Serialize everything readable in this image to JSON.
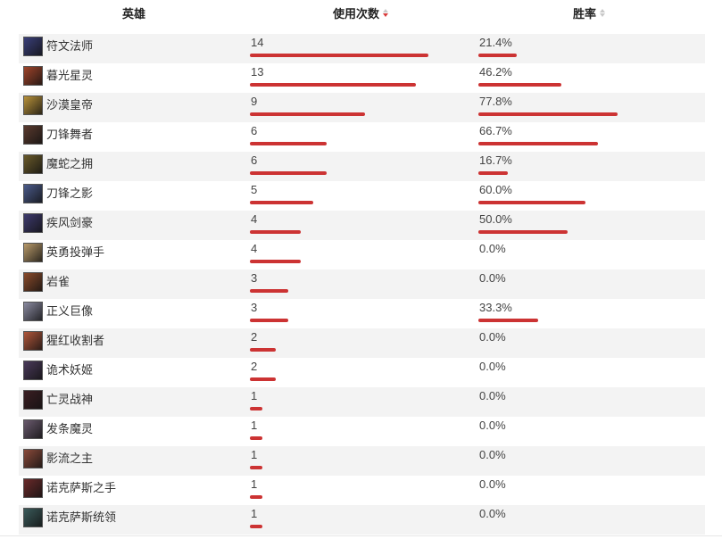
{
  "header": {
    "hero": "英雄",
    "uses": "使用次数",
    "winrate": "胜率"
  },
  "colors": {
    "bar": "#cc3333",
    "sort_active": "#d83a3a"
  },
  "rows": [
    {
      "name": "符文法师",
      "uses": "14",
      "winrate": "21.4%",
      "uses_n": 14,
      "win_n": 21.4,
      "avatar": "#3a3f7a"
    },
    {
      "name": "暮光星灵",
      "uses": "13",
      "winrate": "46.2%",
      "uses_n": 13,
      "win_n": 46.2,
      "avatar": "#a0442a"
    },
    {
      "name": "沙漠皇帝",
      "uses": "9",
      "winrate": "77.8%",
      "uses_n": 9,
      "win_n": 77.8,
      "avatar": "#b8923a"
    },
    {
      "name": "刀锋舞者",
      "uses": "6",
      "winrate": "66.7%",
      "uses_n": 6,
      "win_n": 66.7,
      "avatar": "#5a3a2e"
    },
    {
      "name": "魔蛇之拥",
      "uses": "6",
      "winrate": "16.7%",
      "uses_n": 6,
      "win_n": 16.7,
      "avatar": "#6a5a2a"
    },
    {
      "name": "刀锋之影",
      "uses": "5",
      "winrate": "60.0%",
      "uses_n": 5,
      "win_n": 60.0,
      "avatar": "#4a5a8a"
    },
    {
      "name": "疾风剑豪",
      "uses": "4",
      "winrate": "50.0%",
      "uses_n": 4,
      "win_n": 50.0,
      "avatar": "#3e3a6e"
    },
    {
      "name": "英勇投弹手",
      "uses": "4",
      "winrate": "0.0%",
      "uses_n": 4,
      "win_n": 0,
      "avatar": "#b89a6a"
    },
    {
      "name": "岩雀",
      "uses": "3",
      "winrate": "0.0%",
      "uses_n": 3,
      "win_n": 0,
      "avatar": "#8a4a2a"
    },
    {
      "name": "正义巨像",
      "uses": "3",
      "winrate": "33.3%",
      "uses_n": 3,
      "win_n": 33.3,
      "avatar": "#8a8aa0"
    },
    {
      "name": "猩红收割者",
      "uses": "2",
      "winrate": "0.0%",
      "uses_n": 2,
      "win_n": 0,
      "avatar": "#b0563a"
    },
    {
      "name": "诡术妖姬",
      "uses": "2",
      "winrate": "0.0%",
      "uses_n": 2,
      "win_n": 0,
      "avatar": "#4a3a5a"
    },
    {
      "name": "亡灵战神",
      "uses": "1",
      "winrate": "0.0%",
      "uses_n": 1,
      "win_n": 0,
      "avatar": "#3a1e22"
    },
    {
      "name": "发条魔灵",
      "uses": "1",
      "winrate": "0.0%",
      "uses_n": 1,
      "win_n": 0,
      "avatar": "#6a5a6e"
    },
    {
      "name": "影流之主",
      "uses": "1",
      "winrate": "0.0%",
      "uses_n": 1,
      "win_n": 0,
      "avatar": "#8a4a3a"
    },
    {
      "name": "诺克萨斯之手",
      "uses": "1",
      "winrate": "0.0%",
      "uses_n": 1,
      "win_n": 0,
      "avatar": "#6a2a2a"
    },
    {
      "name": "诺克萨斯统领",
      "uses": "1",
      "winrate": "0.0%",
      "uses_n": 1,
      "win_n": 0,
      "avatar": "#3a5a5a"
    }
  ]
}
